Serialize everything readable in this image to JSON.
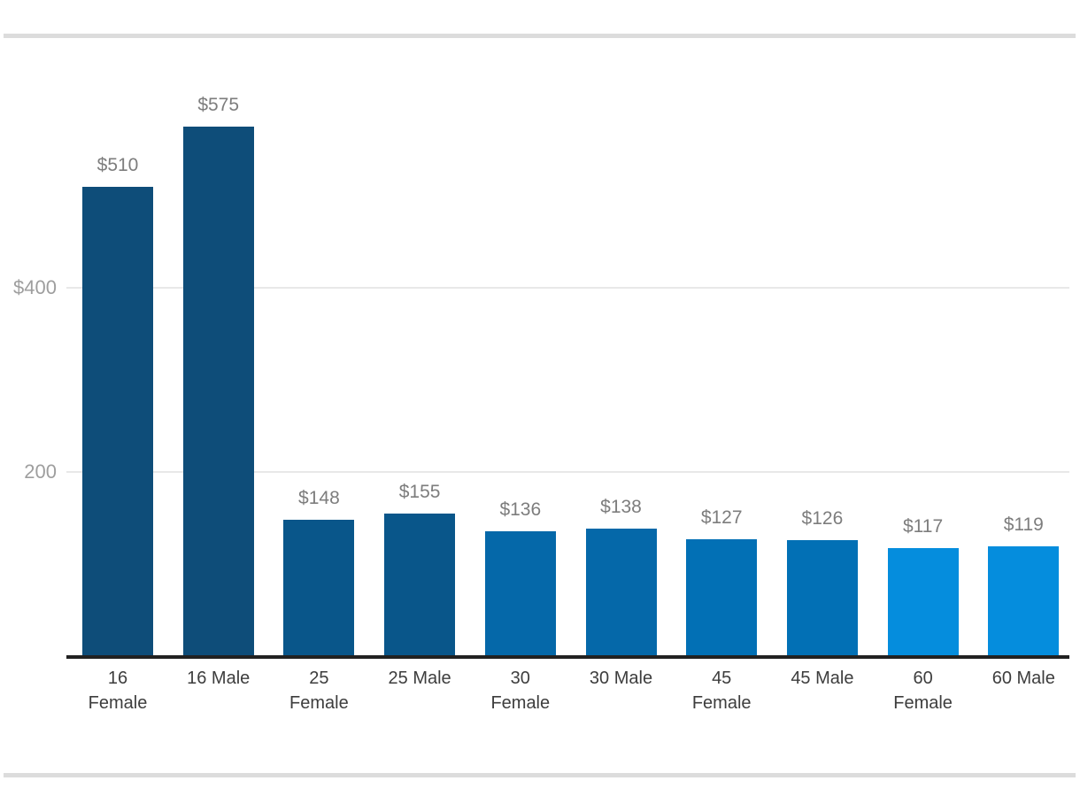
{
  "page": {
    "background": "#ffffff",
    "divider_color": "#dcdcdc"
  },
  "chart_data": {
    "type": "bar",
    "title": "",
    "xlabel": "",
    "ylabel": "",
    "legend": "none",
    "grid": "horizontal",
    "categories": [
      "16 Female",
      "16 Male",
      "25 Female",
      "25 Male",
      "30 Female",
      "30 Male",
      "45 Female",
      "45 Male",
      "60 Female",
      "60 Male"
    ],
    "values": [
      510,
      575,
      148,
      155,
      136,
      138,
      127,
      126,
      117,
      119
    ],
    "value_labels": [
      "$510",
      "$575",
      "$148",
      "$155",
      "$136",
      "$138",
      "$127",
      "$126",
      "$117",
      "$119"
    ],
    "bar_colors": [
      "#0e4d79",
      "#0e4d79",
      "#09568a",
      "#09568a",
      "#0568a9",
      "#0568a9",
      "#0270b5",
      "#0270b5",
      "#058ddd",
      "#058ddd"
    ],
    "y_ticks": [
      {
        "value": 200,
        "label": "200"
      },
      {
        "value": 400,
        "label": "$400"
      }
    ],
    "ylim": [
      0,
      620
    ],
    "axis_color": "#212121",
    "gridline_color": "#e8e8e8",
    "value_label_color": "#7d7d7d",
    "tick_label_color": "#9e9e9e",
    "category_label_color": "#3d3d3d"
  }
}
